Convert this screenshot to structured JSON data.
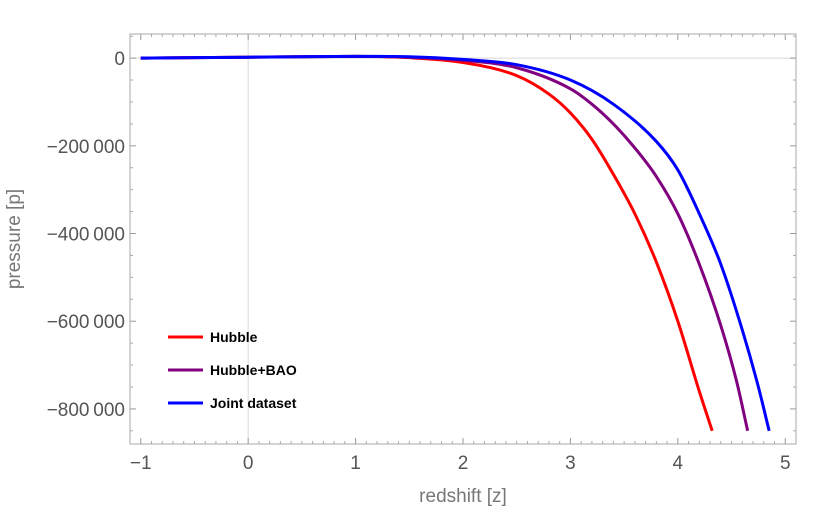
{
  "chart_data": {
    "type": "line",
    "title": "",
    "xlabel": "redshift [z]",
    "ylabel": "pressure [p]",
    "xlim": [
      -1.1,
      5.1
    ],
    "ylim": [
      -880000,
      55000
    ],
    "xticks": [
      -1,
      0,
      1,
      2,
      3,
      4,
      5
    ],
    "xtick_labels": [
      "−1",
      "0",
      "1",
      "2",
      "3",
      "4",
      "5"
    ],
    "yticks": [
      0,
      -200000,
      -400000,
      -600000,
      -800000
    ],
    "ytick_labels": [
      "0",
      "−200 000",
      "−400 000",
      "−600 000",
      "−800 000"
    ],
    "legend_position": "bottom-left",
    "grid": false,
    "series": [
      {
        "name": "Hubble",
        "color": "#ff0000",
        "x": [
          -1.0,
          0.0,
          1.0,
          1.5,
          2.0,
          2.5,
          2.8,
          3.0,
          3.2,
          3.4,
          3.6,
          3.8,
          4.0,
          4.2,
          4.32
        ],
        "y": [
          0,
          2000,
          4000,
          1000,
          -10000,
          -40000,
          -82000,
          -125000,
          -185000,
          -265000,
          -355000,
          -465000,
          -600000,
          -760000,
          -850000
        ]
      },
      {
        "name": "Hubble+BAO",
        "color": "#800080",
        "x": [
          -1.0,
          0.0,
          1.0,
          1.5,
          2.0,
          2.5,
          3.0,
          3.2,
          3.4,
          3.6,
          3.8,
          4.0,
          4.2,
          4.4,
          4.55,
          4.65
        ],
        "y": [
          0,
          2000,
          4000,
          2000,
          -5000,
          -22000,
          -70000,
          -105000,
          -150000,
          -205000,
          -270000,
          -355000,
          -470000,
          -610000,
          -740000,
          -850000
        ]
      },
      {
        "name": "Joint dataset",
        "color": "#0000ff",
        "x": [
          -1.0,
          0.0,
          1.0,
          1.5,
          2.0,
          2.5,
          3.0,
          3.4,
          3.8,
          4.0,
          4.2,
          4.4,
          4.6,
          4.75,
          4.85
        ],
        "y": [
          0,
          2000,
          4000,
          3000,
          -3000,
          -15000,
          -50000,
          -105000,
          -190000,
          -255000,
          -355000,
          -470000,
          -620000,
          -750000,
          -850000
        ]
      }
    ]
  }
}
